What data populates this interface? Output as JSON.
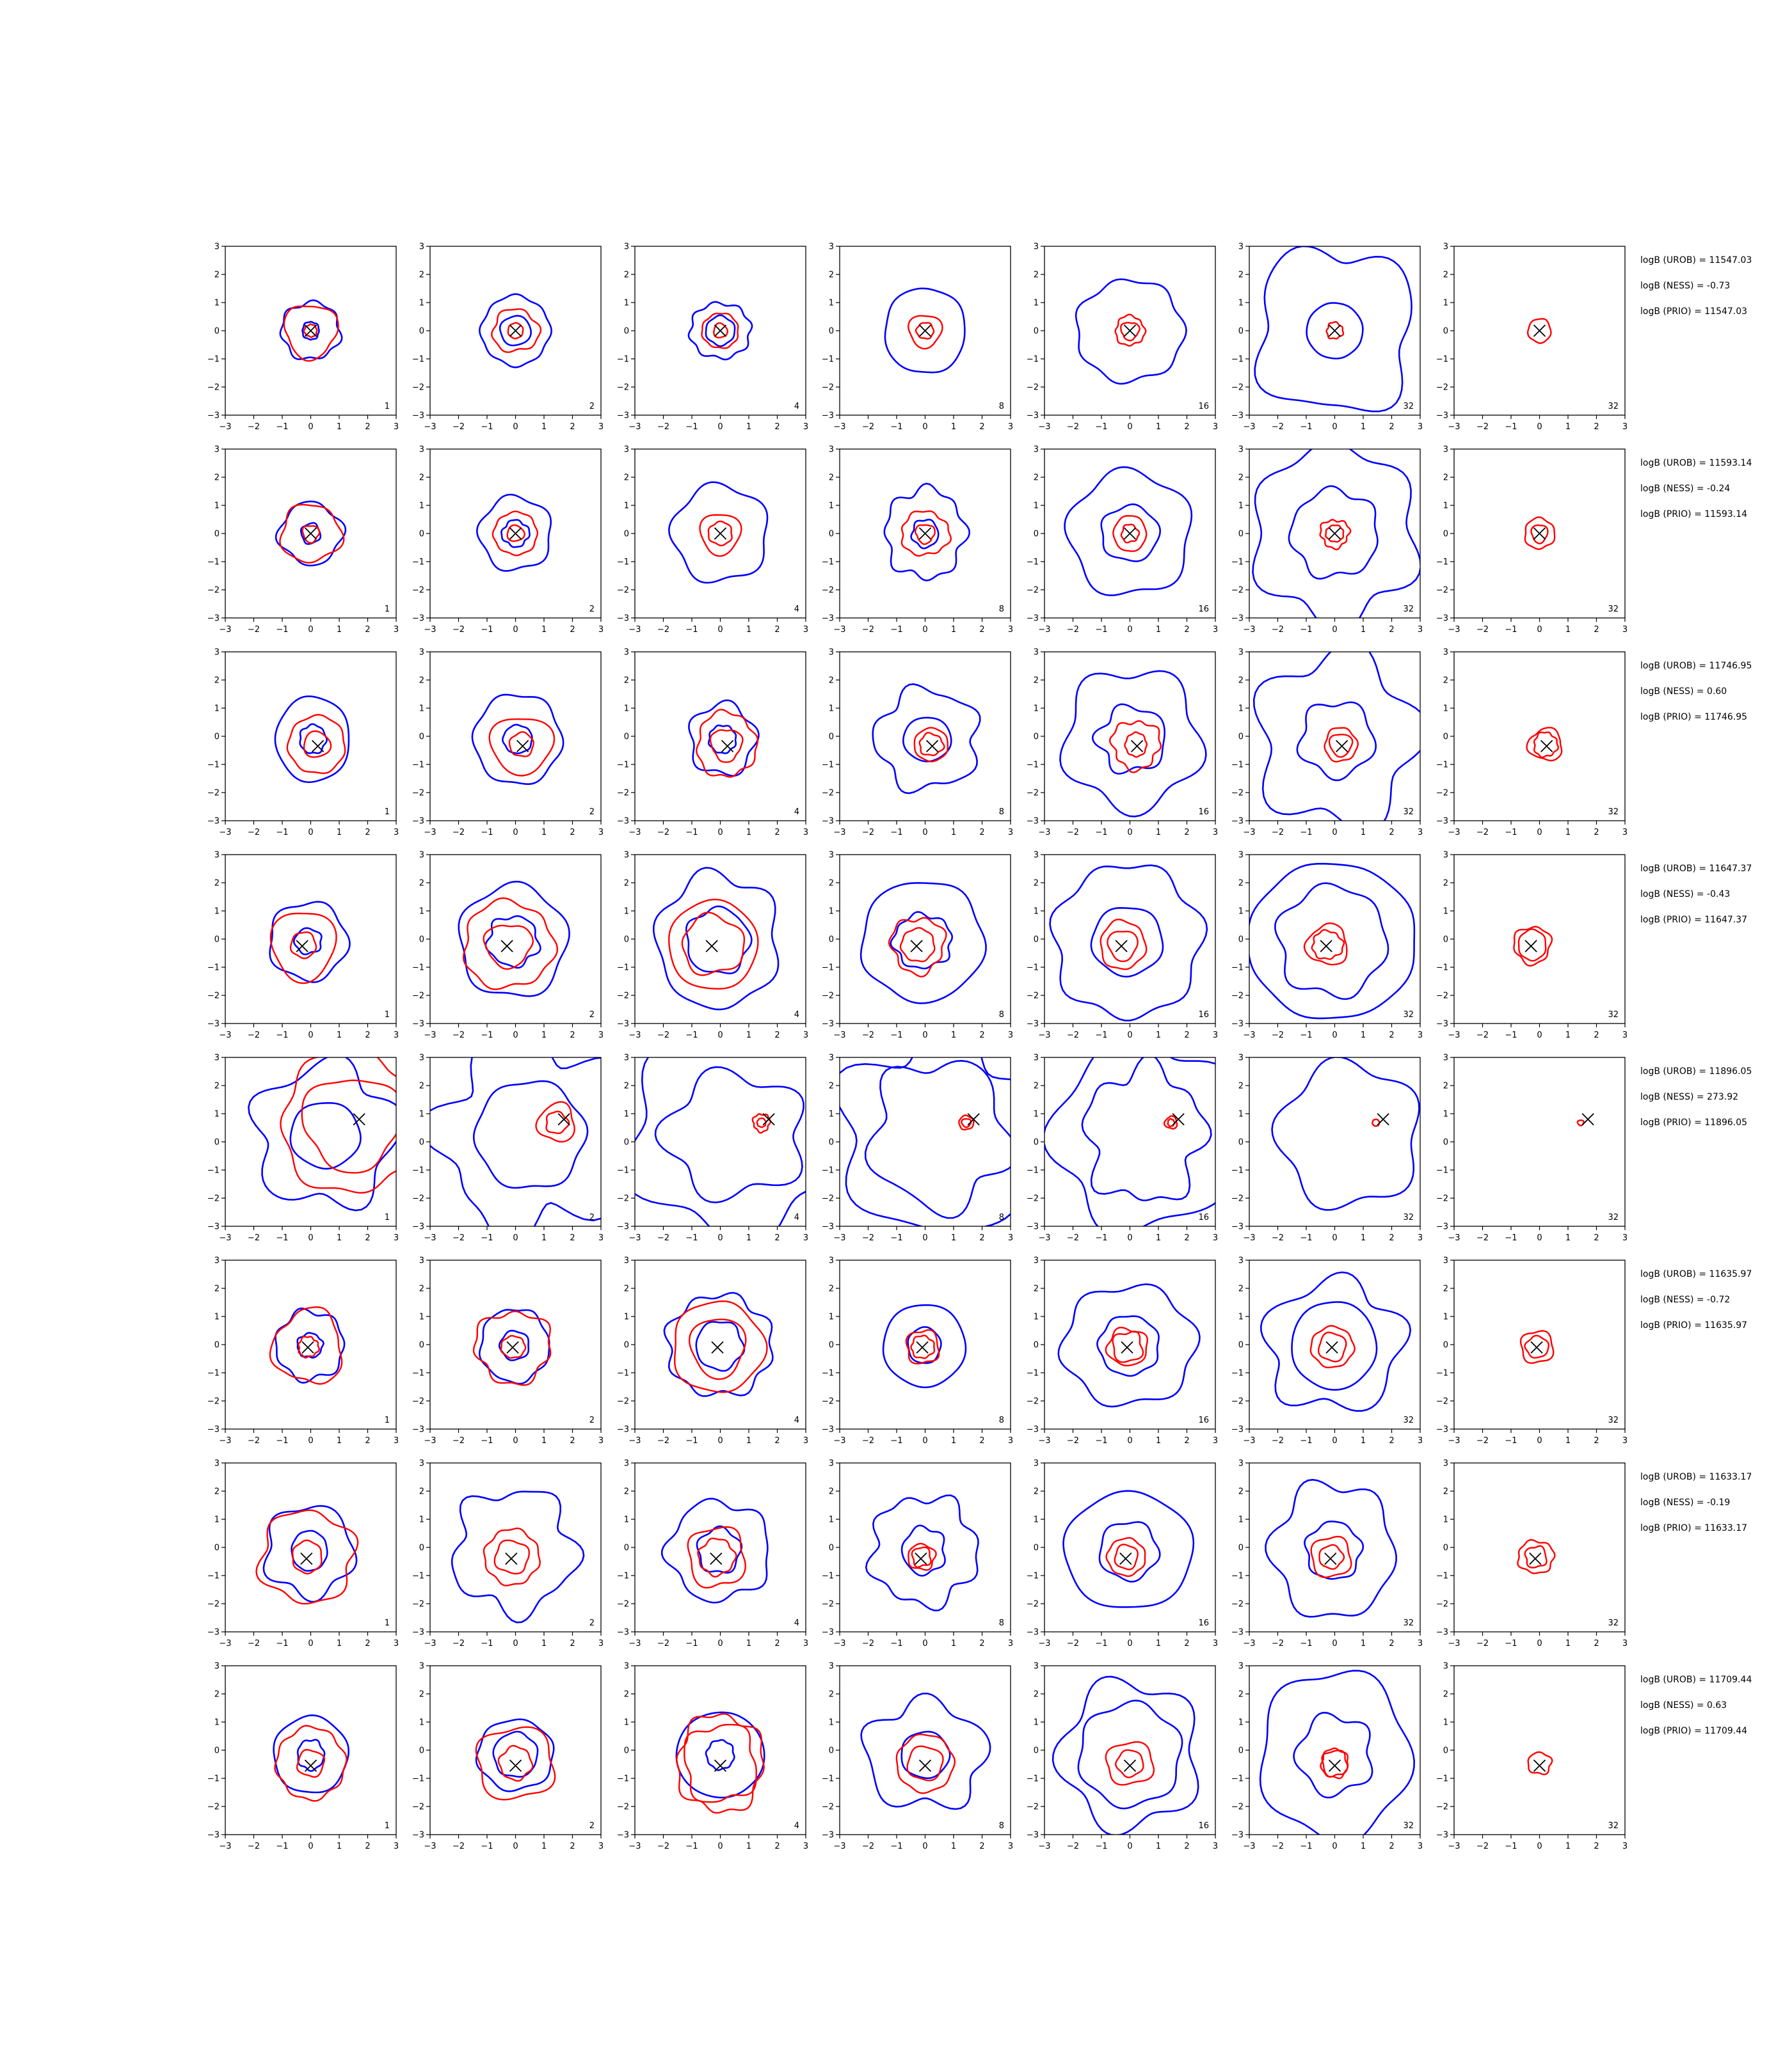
{
  "chart_data": {
    "type": "contour",
    "xlim": [
      -3,
      3
    ],
    "ylim": [
      -3,
      3
    ],
    "x_ticks": [
      "−3",
      "−2",
      "−1",
      "0",
      "1",
      "2",
      "3"
    ],
    "y_ticks": [
      "−3",
      "−2",
      "−1",
      "0",
      "1",
      "2",
      "3"
    ],
    "colors": {
      "blue": "#0000ff",
      "red": "#ff0000",
      "marker": "#000000",
      "axis": "#000000"
    },
    "rows": [
      {
        "marker": [
          0.0,
          0.0
        ],
        "stats": [
          "logB (UROB) = 11547.03",
          "logB (NESS) = -0.73",
          "logB (PRIO) = 11547.03"
        ],
        "panels": [
          {
            "label": "1",
            "blue": [
              0.3,
              1.05
            ],
            "red": [
              0.22,
              0.95
            ]
          },
          {
            "label": "2",
            "blue": [
              0.5,
              1.3
            ],
            "red": [
              0.25,
              0.8
            ]
          },
          {
            "label": "4",
            "blue": [
              0.5,
              1.05
            ],
            "red": [
              0.25,
              0.6
            ]
          },
          {
            "label": "8",
            "blue": [
              1.5
            ],
            "red": [
              0.3,
              0.6
            ]
          },
          {
            "label": "16",
            "blue": [
              1.8
            ],
            "red": [
              0.3,
              0.5
            ]
          },
          {
            "label": "32",
            "blue": [
              1.0,
              2.8
            ],
            "red": [
              0.3
            ]
          },
          {
            "label": "32",
            "blue": [],
            "red": [
              0.4
            ]
          }
        ]
      },
      {
        "marker": [
          0.0,
          0.0
        ],
        "stats": [
          "logB (UROB) = 11593.14",
          "logB (NESS) = -0.24",
          "logB (PRIO) = 11593.14"
        ],
        "panels": [
          {
            "label": "1",
            "blue": [
              0.35,
              1.15
            ],
            "red": [
              0.3,
              1.0
            ]
          },
          {
            "label": "2",
            "blue": [
              0.45,
              1.2
            ],
            "red": [
              0.3,
              0.8
            ]
          },
          {
            "label": "4",
            "blue": [
              1.7
            ],
            "red": [
              0.4,
              0.7
            ]
          },
          {
            "label": "8",
            "blue": [
              0.5,
              1.5
            ],
            "red": [
              0.35,
              0.8
            ]
          },
          {
            "label": "16",
            "blue": [
              1.0,
              2.1
            ],
            "red": [
              0.3,
              0.6
            ]
          },
          {
            "label": "32",
            "blue": [
              1.6,
              3.0
            ],
            "red": [
              0.3,
              0.5
            ]
          },
          {
            "label": "32",
            "blue": [],
            "red": [
              0.3,
              0.5
            ]
          }
        ]
      },
      {
        "marker": [
          0.25,
          -0.35
        ],
        "stats": [
          "logB (UROB) = 11746.95",
          "logB (NESS) = 0.60",
          "logB (PRIO) = 11746.95"
        ],
        "panels": [
          {
            "label": "1",
            "blue": [
              0.5,
              1.4
            ],
            "red": [
              0.45,
              1.0
            ]
          },
          {
            "label": "2",
            "blue": [
              0.5,
              1.5
            ],
            "red": [
              0.45,
              1.05
            ]
          },
          {
            "label": "4",
            "blue": [
              0.5,
              1.2
            ],
            "red": [
              0.55,
              1.1
            ]
          },
          {
            "label": "8",
            "blue": [
              0.8,
              1.7
            ],
            "red": [
              0.4,
              0.6
            ]
          },
          {
            "label": "16",
            "blue": [
              1.2,
              2.4
            ],
            "red": [
              0.4,
              0.8
            ]
          },
          {
            "label": "32",
            "blue": [
              1.4,
              3.0
            ],
            "red": [
              0.4,
              0.6
            ]
          },
          {
            "label": "32",
            "blue": [],
            "red": [
              0.4,
              0.6
            ]
          }
        ]
      },
      {
        "marker": [
          -0.3,
          -0.25
        ],
        "stats": [
          "logB (UROB) = 11647.37",
          "logB (NESS) = -0.43",
          "logB (PRIO) = 11647.37"
        ],
        "panels": [
          {
            "label": "1",
            "blue": [
              0.45,
              1.3
            ],
            "red": [
              0.45,
              1.2
            ]
          },
          {
            "label": "2",
            "blue": [
              0.9,
              1.9
            ],
            "red": [
              0.8,
              1.6
            ]
          },
          {
            "label": "4",
            "blue": [
              1.2,
              2.3
            ],
            "red": [
              1.0,
              1.5
            ]
          },
          {
            "label": "8",
            "blue": [
              1.0,
              2.1
            ],
            "red": [
              0.6,
              1.0
            ]
          },
          {
            "label": "16",
            "blue": [
              1.3,
              2.7
            ],
            "red": [
              0.5,
              0.8
            ]
          },
          {
            "label": "32",
            "blue": [
              1.8,
              2.8
            ],
            "red": [
              0.5,
              0.7
            ]
          },
          {
            "label": "32",
            "blue": [],
            "red": [
              0.5,
              0.7
            ]
          }
        ]
      },
      {
        "marker": [
          1.7,
          0.8
        ],
        "stats": [
          "logB (UROB) = 11896.05",
          "logB (NESS) = 273.92",
          "logB (PRIO) = 11896.05"
        ],
        "panels": [
          {
            "label": "1",
            "blue": [
              1.2,
              2.4
            ],
            "red": [
              1.6,
              2.4
            ]
          },
          {
            "label": "2",
            "blue": [
              2.0,
              3.3
            ],
            "red": [
              0.4,
              0.7
            ]
          },
          {
            "label": "4",
            "blue": [
              2.3,
              3.5
            ],
            "red": [
              0.15,
              0.3
            ]
          },
          {
            "label": "8",
            "blue": [
              2.4,
              3.5
            ],
            "red": [
              0.15,
              0.25
            ]
          },
          {
            "label": "16",
            "blue": [
              2.2,
              3.4
            ],
            "red": [
              0.12,
              0.2
            ]
          },
          {
            "label": "32",
            "blue": [
              2.4
            ],
            "red": [
              0.12
            ]
          },
          {
            "label": "32",
            "blue": [],
            "red": [
              0.1
            ]
          }
        ]
      },
      {
        "marker": [
          -0.1,
          -0.1
        ],
        "stats": [
          "logB (UROB) = 11635.97",
          "logB (NESS) = -0.72",
          "logB (PRIO) = 11635.97"
        ],
        "panels": [
          {
            "label": "1",
            "blue": [
              0.45,
              1.2
            ],
            "red": [
              0.35,
              1.25
            ]
          },
          {
            "label": "2",
            "blue": [
              0.55,
              1.3
            ],
            "red": [
              0.4,
              1.3
            ]
          },
          {
            "label": "4",
            "blue": [
              0.8,
              1.8
            ],
            "red": [
              1.0,
              1.5
            ]
          },
          {
            "label": "8",
            "blue": [
              0.6,
              1.5
            ],
            "red": [
              0.4,
              0.6
            ]
          },
          {
            "label": "16",
            "blue": [
              1.0,
              2.2
            ],
            "red": [
              0.5,
              0.7
            ]
          },
          {
            "label": "32",
            "blue": [
              1.5,
              2.4
            ],
            "red": [
              0.5,
              0.7
            ]
          },
          {
            "label": "32",
            "blue": [],
            "red": [
              0.4,
              0.6
            ]
          }
        ]
      },
      {
        "marker": [
          -0.15,
          -0.4
        ],
        "stats": [
          "logB (UROB) = 11633.17",
          "logB (NESS) = -0.19",
          "logB (PRIO) = 11633.17"
        ],
        "panels": [
          {
            "label": "1",
            "blue": [
              0.65,
              1.6
            ],
            "red": [
              0.55,
              1.55
            ]
          },
          {
            "label": "2",
            "blue": [
              2.0
            ],
            "red": [
              0.6,
              1.0
            ]
          },
          {
            "label": "4",
            "blue": [
              0.75,
              1.8
            ],
            "red": [
              0.6,
              1.0
            ]
          },
          {
            "label": "8",
            "blue": [
              0.8,
              2.0
            ],
            "red": [
              0.35,
              0.45
            ]
          },
          {
            "label": "16",
            "blue": [
              1.0,
              2.2
            ],
            "red": [
              0.4,
              0.7
            ]
          },
          {
            "label": "32",
            "blue": [
              1.0,
              2.2
            ],
            "red": [
              0.4,
              0.7
            ]
          },
          {
            "label": "32",
            "blue": [],
            "red": [
              0.4,
              0.6
            ]
          }
        ]
      },
      {
        "marker": [
          0.0,
          -0.55
        ],
        "stats": [
          "logB (UROB) = 11709.44",
          "logB (NESS) = 0.63",
          "logB (PRIO) = 11709.44"
        ],
        "panels": [
          {
            "label": "1",
            "blue": [
              0.5,
              1.4
            ],
            "red": [
              0.45,
              1.2
            ]
          },
          {
            "label": "2",
            "blue": [
              0.75,
              1.3
            ],
            "red": [
              0.6,
              1.3
            ]
          },
          {
            "label": "4",
            "blue": [
              0.5,
              1.6
            ],
            "red": [
              1.3,
              1.6
            ]
          },
          {
            "label": "8",
            "blue": [
              0.8,
              2.0
            ],
            "red": [
              0.6,
              1.0
            ]
          },
          {
            "label": "16",
            "blue": [
              1.8,
              2.4
            ],
            "red": [
              0.5,
              0.8
            ]
          },
          {
            "label": "32",
            "blue": [
              1.4,
              2.8
            ],
            "red": [
              0.45,
              0.5
            ]
          },
          {
            "label": "32",
            "blue": [],
            "red": [
              0.4
            ]
          }
        ]
      }
    ]
  }
}
